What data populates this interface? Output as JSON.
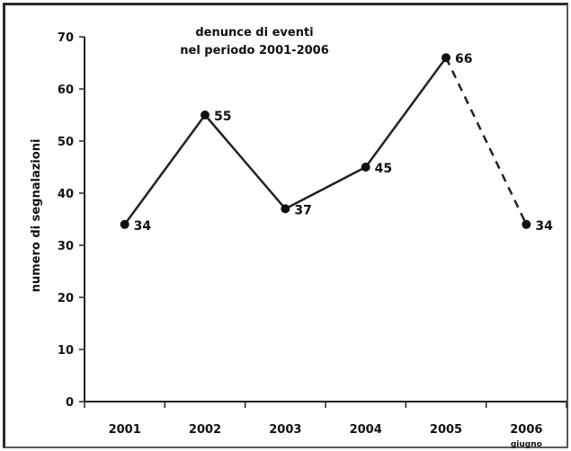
{
  "chart_data": {
    "type": "line",
    "title_lines": [
      "denunce di eventi",
      "nel periodo 2001-2006"
    ],
    "xlabel": "",
    "ylabel": "numero di segnalazioni",
    "categories": [
      "2001",
      "2002",
      "2003",
      "2004",
      "2005",
      "2006"
    ],
    "category_sublabels": [
      "",
      "",
      "",
      "",
      "",
      "giugno"
    ],
    "values": [
      34,
      55,
      37,
      45,
      66,
      34
    ],
    "data_labels": [
      "34",
      "55",
      "37",
      "45",
      "66",
      "34"
    ],
    "dashed_last_segment": true,
    "ylim": [
      0,
      70
    ],
    "yticks": [
      0,
      10,
      20,
      30,
      40,
      50,
      60,
      70
    ],
    "grid": false,
    "legend": "none",
    "colors": {
      "line": "#222222",
      "marker": "#111111",
      "axis": "#222222",
      "text": "#111111",
      "frame": "#2a2a2a"
    }
  }
}
